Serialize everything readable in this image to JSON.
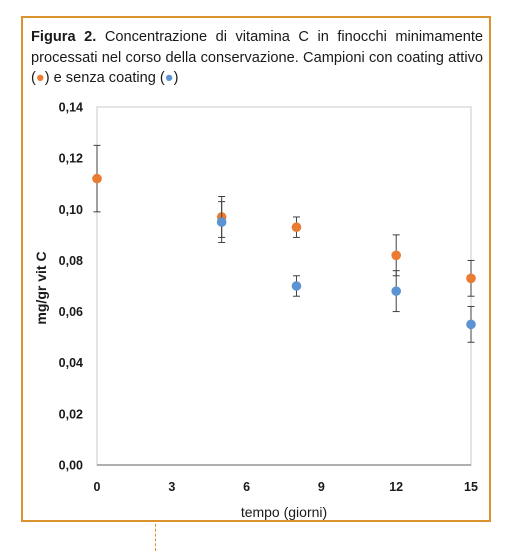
{
  "caption": {
    "label": "Figura 2.",
    "text_main": " Concentrazione di vitamina C in finocchi minimamente processati nel corso della conservazione. Campioni con coating attivo (",
    "text_mid": ") e senza coating (",
    "text_end": ")",
    "marker_active": "●",
    "marker_none": "●"
  },
  "colors": {
    "frame": "#d9922e",
    "active": "#e97b32",
    "none": "#5b93d3",
    "axis": "#7f7f7f",
    "errorbar": "#404040"
  },
  "chart_data": {
    "type": "scatter",
    "xlabel": "tempo (giorni)",
    "ylabel": "mg/gr vit C",
    "xlim": [
      0,
      15
    ],
    "ylim": [
      0,
      0.14
    ],
    "x_ticks": [
      "0",
      "3",
      "6",
      "9",
      "12",
      "15"
    ],
    "y_ticks": [
      "0,00",
      "0,02",
      "0,04",
      "0,06",
      "0,08",
      "0,10",
      "0,12",
      "0,14"
    ],
    "grid": false,
    "series": [
      {
        "color": "#e97b32",
        "points": [
          {
            "x": 0,
            "y": 0.112,
            "err": 0.013
          },
          {
            "x": 5,
            "y": 0.097,
            "err": 0.008
          },
          {
            "x": 8,
            "y": 0.093,
            "err": 0.004
          },
          {
            "x": 12,
            "y": 0.082,
            "err": 0.008
          },
          {
            "x": 15,
            "y": 0.073,
            "err": 0.007
          }
        ]
      },
      {
        "color": "#5b93d3",
        "points": [
          {
            "x": 5,
            "y": 0.095,
            "err": 0.008
          },
          {
            "x": 8,
            "y": 0.07,
            "err": 0.004
          },
          {
            "x": 12,
            "y": 0.068,
            "err": 0.008
          },
          {
            "x": 15,
            "y": 0.055,
            "err": 0.007
          }
        ]
      }
    ]
  }
}
